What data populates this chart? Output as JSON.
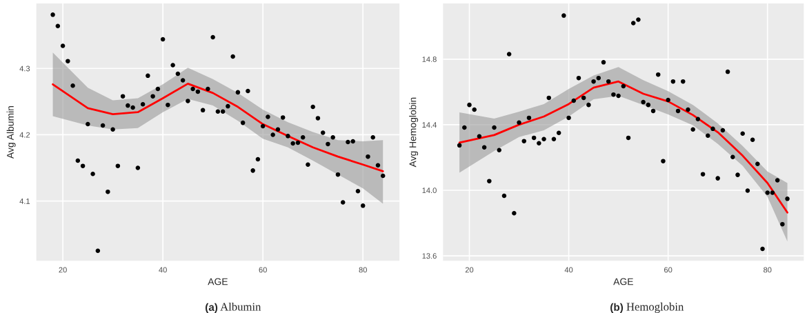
{
  "chart_data": [
    {
      "type": "scatter",
      "title": "(a) Albumin",
      "xlabel": "AGE",
      "ylabel": "Avg Albumin",
      "xlim": [
        14.7,
        87.3
      ],
      "ylim": [
        4.01,
        4.398
      ],
      "xticks": [
        20,
        40,
        60,
        80
      ],
      "yticks": [
        4.1,
        4.2,
        4.3
      ],
      "grid": true,
      "series": [
        {
          "marker": "circle",
          "color": "#000000",
          "x": [
            18,
            19,
            20,
            21,
            22,
            23,
            24,
            25,
            26,
            27,
            28,
            29,
            30,
            31,
            32,
            33,
            34,
            35,
            36,
            37,
            38,
            39,
            40,
            41,
            42,
            43,
            44,
            45,
            46,
            47,
            48,
            49,
            50,
            51,
            52,
            53,
            54,
            55,
            56,
            57,
            58,
            59,
            60,
            61,
            62,
            63,
            64,
            65,
            66,
            67,
            68,
            69,
            70,
            71,
            72,
            73,
            74,
            75,
            76,
            77,
            78,
            79,
            80,
            81,
            82,
            83,
            84
          ],
          "values": [
            4.381,
            4.364,
            4.334,
            4.311,
            4.274,
            4.161,
            4.153,
            4.216,
            4.141,
            4.025,
            4.214,
            4.114,
            4.208,
            4.153,
            4.258,
            4.244,
            4.241,
            4.15,
            4.246,
            4.289,
            4.258,
            4.269,
            4.344,
            4.245,
            4.305,
            4.292,
            4.282,
            4.251,
            4.269,
            4.265,
            4.237,
            4.269,
            4.347,
            4.235,
            4.235,
            4.243,
            4.318,
            4.264,
            4.218,
            4.266,
            4.146,
            4.163,
            4.213,
            4.227,
            4.2,
            4.208,
            4.226,
            4.198,
            4.187,
            4.188,
            4.196,
            4.155,
            4.242,
            4.225,
            4.203,
            4.186,
            4.196,
            4.14,
            4.098,
            4.189,
            4.19,
            4.115,
            4.093,
            4.167,
            4.196,
            4.154,
            4.138
          ]
        },
        {
          "type": "line",
          "color": "#ff0000",
          "x": [
            18,
            25,
            30,
            35,
            40,
            45,
            50,
            55,
            60,
            65,
            70,
            75,
            80,
            84
          ],
          "values": [
            4.276,
            4.24,
            4.231,
            4.234,
            4.255,
            4.277,
            4.263,
            4.242,
            4.216,
            4.198,
            4.181,
            4.167,
            4.155,
            4.145
          ],
          "lower": [
            4.228,
            4.214,
            4.208,
            4.21,
            4.234,
            4.254,
            4.244,
            4.221,
            4.194,
            4.181,
            4.161,
            4.14,
            4.119,
            4.096
          ],
          "upper": [
            4.324,
            4.271,
            4.252,
            4.255,
            4.276,
            4.301,
            4.284,
            4.263,
            4.238,
            4.219,
            4.204,
            4.192,
            4.19,
            4.192
          ]
        }
      ]
    },
    {
      "type": "scatter",
      "title": "(b) Hemoglobin",
      "xlabel": "AGE",
      "ylabel": "Avg Hemoglobin",
      "xlim": [
        14.7,
        87.3
      ],
      "ylim": [
        13.57,
        15.14
      ],
      "xticks": [
        20,
        40,
        60,
        80
      ],
      "yticks": [
        13.6,
        {
          "value": 14,
          "label": "14.0"
        },
        14.4,
        14.8
      ],
      "grid": true,
      "series": [
        {
          "marker": "circle",
          "color": "#000000",
          "x": [
            18,
            19,
            20,
            21,
            22,
            23,
            24,
            25,
            26,
            27,
            28,
            29,
            30,
            31,
            32,
            33,
            34,
            35,
            36,
            37,
            38,
            39,
            40,
            41,
            42,
            43,
            44,
            45,
            46,
            47,
            48,
            49,
            50,
            51,
            52,
            53,
            54,
            55,
            56,
            57,
            58,
            59,
            60,
            61,
            62,
            63,
            64,
            65,
            66,
            67,
            68,
            69,
            70,
            71,
            72,
            73,
            74,
            75,
            76,
            77,
            78,
            79,
            80,
            81,
            82,
            83,
            84
          ],
          "values": [
            14.274,
            14.383,
            14.521,
            14.492,
            14.329,
            14.262,
            14.056,
            14.383,
            14.245,
            13.966,
            14.831,
            13.86,
            14.413,
            14.3,
            14.442,
            14.32,
            14.287,
            14.312,
            14.564,
            14.312,
            14.35,
            15.066,
            14.442,
            14.547,
            14.685,
            14.564,
            14.521,
            14.664,
            14.685,
            14.781,
            14.664,
            14.584,
            14.576,
            14.635,
            14.32,
            15.02,
            15.041,
            14.538,
            14.521,
            14.484,
            14.706,
            14.178,
            14.551,
            14.664,
            14.484,
            14.664,
            14.492,
            14.371,
            14.434,
            14.098,
            14.333,
            14.375,
            14.073,
            14.366,
            14.723,
            14.203,
            14.094,
            14.346,
            13.998,
            14.308,
            14.161,
            13.642,
            13.985,
            13.985,
            14.061,
            13.793,
            13.948
          ]
        },
        {
          "type": "line",
          "color": "#ff0000",
          "x": [
            18,
            25,
            30,
            35,
            40,
            45,
            50,
            55,
            60,
            65,
            70,
            75,
            80,
            84
          ],
          "values": [
            14.291,
            14.337,
            14.4,
            14.45,
            14.526,
            14.626,
            14.664,
            14.589,
            14.542,
            14.459,
            14.354,
            14.211,
            14.044,
            13.864
          ],
          "lower": [
            14.107,
            14.24,
            14.325,
            14.366,
            14.45,
            14.555,
            14.576,
            14.521,
            14.463,
            14.396,
            14.283,
            14.149,
            13.96,
            13.688
          ],
          "upper": [
            14.475,
            14.437,
            14.48,
            14.526,
            14.618,
            14.7,
            14.752,
            14.672,
            14.605,
            14.521,
            14.408,
            14.27,
            14.115,
            14.044
          ]
        }
      ]
    }
  ]
}
